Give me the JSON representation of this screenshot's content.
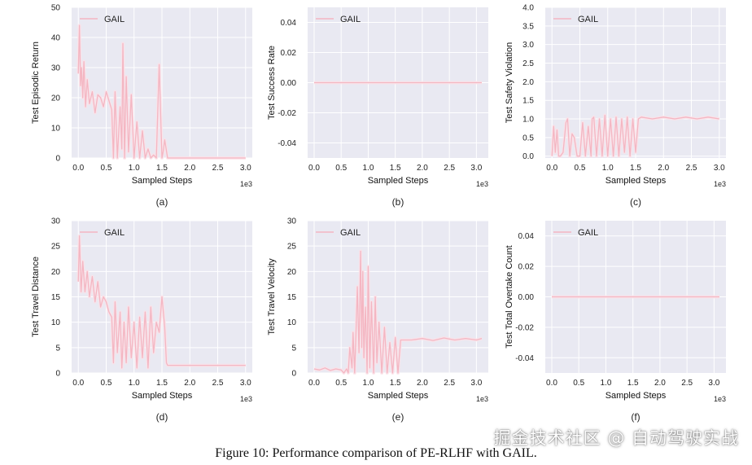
{
  "caption": "Figure 10: Performance comparison of PE-RLHF with GAIL.",
  "watermark": "掘金技术社区 @ 自动驾驶实战",
  "colors": {
    "line": "#f4b6c2",
    "band": "#fbe1e7",
    "plot_bg": "#e9e9f2",
    "grid": "#ffffff"
  },
  "chart_data": [
    {
      "type": "line",
      "panel_label": "(a)",
      "ylabel": "Test Episodic Return",
      "xlabel": "Sampled Steps",
      "x_scale_label": "1e3",
      "xlim": [
        -0.12,
        3.12
      ],
      "ylim": [
        0,
        50
      ],
      "xticks": [
        0.0,
        0.5,
        1.0,
        1.5,
        2.0,
        2.5,
        3.0
      ],
      "yticks": [
        0,
        10,
        20,
        30,
        40,
        50
      ],
      "ytick_decimals": 0,
      "grid": true,
      "legend": "top-left",
      "series": [
        {
          "name": "GAIL",
          "x": [
            0,
            0.02,
            0.04,
            0.06,
            0.08,
            0.1,
            0.13,
            0.16,
            0.2,
            0.25,
            0.3,
            0.35,
            0.4,
            0.45,
            0.5,
            0.55,
            0.6,
            0.63,
            0.66,
            0.7,
            0.75,
            0.78,
            0.8,
            0.83,
            0.86,
            0.9,
            0.95,
            1.0,
            1.05,
            1.1,
            1.15,
            1.2,
            1.25,
            1.3,
            1.35,
            1.4,
            1.45,
            1.5,
            1.52,
            1.55,
            1.6,
            2.0,
            2.5,
            3.0
          ],
          "y": [
            28,
            44,
            24,
            30,
            20,
            32,
            17,
            26,
            18,
            22,
            15,
            21,
            20,
            17,
            22,
            19,
            16,
            0,
            22,
            0,
            17,
            3,
            38,
            0,
            27,
            2,
            21,
            0,
            12,
            0,
            9,
            0,
            3,
            0,
            1,
            0,
            31,
            0,
            2,
            6,
            0,
            0,
            0,
            0
          ]
        }
      ]
    },
    {
      "type": "line",
      "panel_label": "(b)",
      "ylabel": "Test Success Rate",
      "xlabel": "Sampled Steps",
      "x_scale_label": "1e3",
      "xlim": [
        -0.12,
        3.22
      ],
      "ylim": [
        -0.05,
        0.05
      ],
      "xticks": [
        0.0,
        0.5,
        1.0,
        1.5,
        2.0,
        2.5,
        3.0
      ],
      "yticks": [
        -0.04,
        -0.02,
        0.0,
        0.02,
        0.04
      ],
      "ytick_decimals": 2,
      "grid": true,
      "legend": "top-left",
      "series": [
        {
          "name": "GAIL",
          "x": [
            0,
            3.1
          ],
          "y": [
            0,
            0
          ]
        }
      ]
    },
    {
      "type": "line",
      "panel_label": "(c)",
      "ylabel": "Test Safety Violation",
      "xlabel": "Sampled Steps",
      "x_scale_label": "1e3",
      "xlim": [
        -0.12,
        3.12
      ],
      "ylim": [
        -0.05,
        4.0
      ],
      "xticks": [
        0.0,
        0.5,
        1.0,
        1.5,
        2.0,
        2.5,
        3.0
      ],
      "yticks": [
        0.0,
        0.5,
        1.0,
        1.5,
        2.0,
        2.5,
        3.0,
        3.5,
        4.0
      ],
      "ytick_decimals": 1,
      "grid": true,
      "legend": "top-left",
      "series": [
        {
          "name": "GAIL",
          "x": [
            0,
            0.03,
            0.06,
            0.09,
            0.12,
            0.15,
            0.2,
            0.25,
            0.28,
            0.32,
            0.36,
            0.4,
            0.45,
            0.5,
            0.55,
            0.6,
            0.65,
            0.7,
            0.72,
            0.75,
            0.8,
            0.85,
            0.9,
            0.95,
            1.0,
            1.05,
            1.1,
            1.15,
            1.2,
            1.25,
            1.3,
            1.35,
            1.4,
            1.45,
            1.5,
            1.55,
            1.6,
            1.8,
            2.0,
            2.2,
            2.4,
            2.6,
            2.8,
            3.0
          ],
          "y": [
            0,
            0.8,
            0.1,
            0.7,
            0,
            0,
            0.1,
            0.9,
            1.0,
            0,
            0.6,
            0.5,
            0,
            0,
            0.9,
            0,
            0.8,
            0,
            1.0,
            1.05,
            0,
            1.0,
            0,
            1.1,
            0,
            1.0,
            0,
            1.05,
            0,
            1.0,
            0.1,
            1.05,
            0,
            1.0,
            0.1,
            1.0,
            1.05,
            1.0,
            1.05,
            1.0,
            1.05,
            1.0,
            1.05,
            1.0
          ]
        }
      ]
    },
    {
      "type": "line",
      "panel_label": "(d)",
      "ylabel": "Test Travel Distance",
      "xlabel": "Sampled Steps",
      "x_scale_label": "1e3",
      "xlim": [
        -0.12,
        3.12
      ],
      "ylim": [
        0,
        30
      ],
      "xticks": [
        0.0,
        0.5,
        1.0,
        1.5,
        2.0,
        2.5,
        3.0
      ],
      "yticks": [
        0,
        5,
        10,
        15,
        20,
        25,
        30
      ],
      "ytick_decimals": 0,
      "grid": true,
      "legend": "top-left",
      "series": [
        {
          "name": "GAIL",
          "x": [
            0,
            0.02,
            0.05,
            0.08,
            0.12,
            0.16,
            0.2,
            0.25,
            0.3,
            0.35,
            0.4,
            0.45,
            0.5,
            0.55,
            0.6,
            0.63,
            0.66,
            0.7,
            0.75,
            0.78,
            0.82,
            0.86,
            0.9,
            0.95,
            1.0,
            1.05,
            1.1,
            1.15,
            1.2,
            1.25,
            1.3,
            1.35,
            1.4,
            1.45,
            1.5,
            1.55,
            1.58,
            1.6,
            2.0,
            2.5,
            3.0
          ],
          "y": [
            18,
            27,
            16,
            22,
            16,
            20,
            15,
            19,
            14,
            18,
            13,
            15,
            14,
            12,
            11,
            2,
            14,
            4,
            12,
            1,
            10,
            2,
            13,
            3,
            10,
            1,
            11,
            3,
            12,
            1,
            13,
            4,
            10,
            8,
            15,
            9,
            2,
            1.5,
            1.5,
            1.5,
            1.5
          ]
        }
      ]
    },
    {
      "type": "line",
      "panel_label": "(e)",
      "ylabel": "Test Travel Velocity",
      "xlabel": "Sampled Steps",
      "x_scale_label": "1e3",
      "xlim": [
        -0.12,
        3.22
      ],
      "ylim": [
        0,
        30
      ],
      "xticks": [
        0.0,
        0.5,
        1.0,
        1.5,
        2.0,
        2.5,
        3.0
      ],
      "yticks": [
        0,
        5,
        10,
        15,
        20,
        25,
        30
      ],
      "ytick_decimals": 0,
      "grid": true,
      "legend": "top-left",
      "series": [
        {
          "name": "GAIL",
          "x": [
            0,
            0.1,
            0.2,
            0.3,
            0.4,
            0.5,
            0.55,
            0.6,
            0.63,
            0.66,
            0.7,
            0.72,
            0.75,
            0.78,
            0.8,
            0.83,
            0.86,
            0.88,
            0.9,
            0.92,
            0.95,
            0.98,
            1.0,
            1.03,
            1.06,
            1.1,
            1.13,
            1.16,
            1.2,
            1.25,
            1.3,
            1.35,
            1.4,
            1.45,
            1.5,
            1.55,
            1.6,
            1.8,
            2.0,
            2.2,
            2.4,
            2.6,
            2.8,
            3.0,
            3.1
          ],
          "y": [
            0.8,
            0.6,
            1.0,
            0.5,
            0.8,
            0.6,
            0,
            0.8,
            0,
            5,
            1,
            8,
            0,
            10,
            17,
            4,
            24,
            5,
            20,
            3,
            13,
            0,
            21,
            1,
            14,
            0,
            15,
            2,
            10,
            0,
            9,
            0,
            6,
            0,
            7,
            0,
            6.5,
            6.5,
            6.8,
            6.4,
            6.9,
            6.5,
            6.8,
            6.5,
            6.8
          ]
        }
      ]
    },
    {
      "type": "line",
      "panel_label": "(f)",
      "ylabel": "Test Total Overtake Count",
      "xlabel": "Sampled Steps",
      "x_scale_label": "1e3",
      "xlim": [
        -0.12,
        3.22
      ],
      "ylim": [
        -0.05,
        0.05
      ],
      "xticks": [
        0.0,
        0.5,
        1.0,
        1.5,
        2.0,
        2.5,
        3.0
      ],
      "yticks": [
        -0.04,
        -0.02,
        0.0,
        0.02,
        0.04
      ],
      "ytick_decimals": 2,
      "grid": true,
      "legend": "top-left",
      "series": [
        {
          "name": "GAIL",
          "x": [
            0,
            3.1
          ],
          "y": [
            0,
            0
          ]
        }
      ]
    }
  ]
}
